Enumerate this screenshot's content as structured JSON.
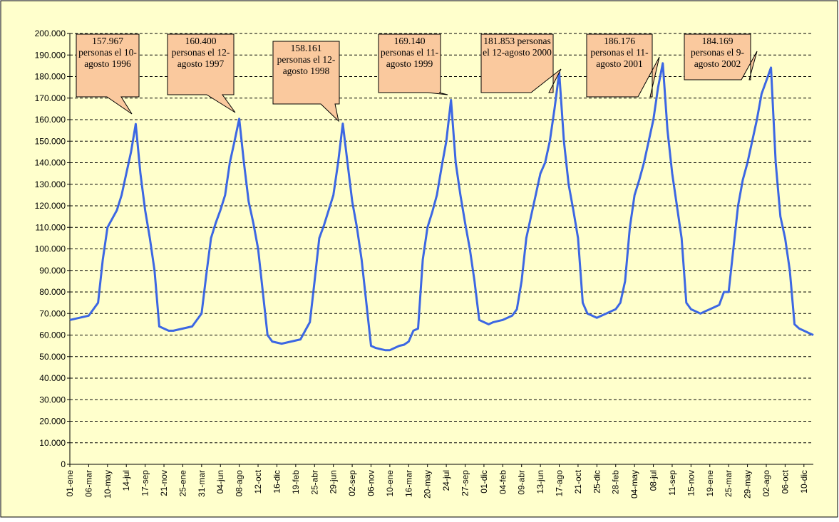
{
  "chart_data": {
    "type": "line",
    "categories": [
      "01-ene",
      null,
      null,
      null,
      "06-mar",
      null,
      null,
      null,
      "10-may",
      null,
      null,
      null,
      "14-jul",
      null,
      null,
      null,
      "17-sep",
      null,
      null,
      null,
      "21-nov",
      null,
      null,
      null,
      "25-ene",
      null,
      null,
      null,
      "31-mar",
      null,
      null,
      null,
      "04-jun",
      null,
      null,
      null,
      "08-ago",
      null,
      null,
      null,
      "12-oct",
      null,
      null,
      null,
      "16-dic",
      null,
      null,
      null,
      "19-feb",
      null,
      null,
      null,
      "25-abr",
      null,
      null,
      null,
      "29-jun",
      null,
      null,
      null,
      "02-sep",
      null,
      null,
      null,
      "06-nov",
      null,
      null,
      null,
      "10-ene",
      null,
      null,
      null,
      "16-mar",
      null,
      null,
      null,
      "20-may",
      null,
      null,
      null,
      "24-jul",
      null,
      null,
      null,
      "27-sep",
      null,
      null,
      null,
      "01-dic",
      null,
      null,
      null,
      "04-feb",
      null,
      null,
      null,
      "09-abr",
      null,
      null,
      null,
      "13-jun",
      null,
      null,
      null,
      "17-ago",
      null,
      null,
      null,
      "21-oct",
      null,
      null,
      null,
      "25-dic",
      null,
      null,
      null,
      "28-feb",
      null,
      null,
      null,
      "04-may",
      null,
      null,
      null,
      "08-jul",
      null,
      null,
      null,
      "11-sep",
      null,
      null,
      null,
      "15-nov",
      null,
      null,
      null,
      "19-ene",
      null,
      null,
      null,
      "25-mar",
      null,
      null,
      null,
      "29-may",
      null,
      null,
      null,
      "02-ago",
      null,
      null,
      null,
      "06-oct",
      null,
      null,
      null,
      "10-dic",
      null,
      null
    ],
    "values": [
      67000,
      67500,
      68000,
      68500,
      69000,
      72000,
      75000,
      95000,
      110000,
      114000,
      118000,
      125000,
      135000,
      145000,
      157967,
      135000,
      118000,
      105000,
      90000,
      64000,
      63000,
      62000,
      62000,
      62500,
      63000,
      63500,
      64000,
      67000,
      70000,
      88000,
      105000,
      112000,
      118000,
      125000,
      140000,
      150000,
      160400,
      140000,
      122000,
      112000,
      100000,
      80000,
      60000,
      57000,
      56500,
      56000,
      56500,
      57000,
      57500,
      58000,
      62000,
      66000,
      85000,
      105000,
      111000,
      118000,
      125000,
      140000,
      158161,
      140000,
      122000,
      110000,
      95000,
      75000,
      55000,
      54000,
      53500,
      53000,
      53000,
      54000,
      55000,
      55500,
      57000,
      62000,
      63000,
      95000,
      110000,
      117000,
      125000,
      138000,
      150000,
      169140,
      140000,
      125000,
      112000,
      100000,
      85000,
      67000,
      66000,
      65000,
      66000,
      66500,
      67000,
      68000,
      69000,
      72000,
      85000,
      105000,
      115000,
      125000,
      135000,
      140000,
      150000,
      165000,
      181853,
      150000,
      130000,
      118000,
      105000,
      75000,
      70000,
      69000,
      68000,
      69000,
      70000,
      71000,
      72000,
      75000,
      85000,
      110000,
      125000,
      132000,
      140000,
      150000,
      160000,
      175000,
      186176,
      155000,
      135000,
      120000,
      105000,
      75000,
      72000,
      71000,
      70000,
      71000,
      72000,
      73000,
      74000,
      80000,
      80000,
      100000,
      120000,
      132000,
      140000,
      150000,
      160000,
      172000,
      178000,
      184169,
      140000,
      115000,
      105000,
      90000,
      65000,
      63000,
      62000,
      61000,
      60000
    ],
    "color": "#3c67e3",
    "ylim": [
      0,
      200000
    ],
    "yticks": [
      0,
      {
        "value": 10000,
        "label": "10.000"
      },
      {
        "value": 20000,
        "label": "20.000"
      },
      {
        "value": 30000,
        "label": "30.000"
      },
      {
        "value": 40000,
        "label": "40.000"
      },
      {
        "value": 50000,
        "label": "50.000"
      },
      {
        "value": 60000,
        "label": "60.000"
      },
      {
        "value": 70000,
        "label": "70.000"
      },
      {
        "value": 80000,
        "label": "80.000"
      },
      {
        "value": 90000,
        "label": "90.000"
      },
      {
        "value": 100000,
        "label": "100.000"
      },
      {
        "value": 110000,
        "label": "110.000"
      },
      {
        "value": 120000,
        "label": "120.000"
      },
      {
        "value": 130000,
        "label": "130.000"
      },
      {
        "value": 140000,
        "label": "140.000"
      },
      {
        "value": 150000,
        "label": "150.000"
      },
      {
        "value": 160000,
        "label": "160.000"
      },
      {
        "value": 170000,
        "label": "170.000"
      },
      {
        "value": 180000,
        "label": "180.000"
      },
      {
        "value": 190000,
        "label": "190.000"
      },
      {
        "value": 200000,
        "label": "200.000"
      }
    ],
    "grid": true,
    "annotations": [
      "157.967 personas el 10-agosto 1996",
      "160.400 personas el 12-agosto 1997",
      "158.161 personas el 12-agosto 1998",
      "169.140 personas el 11-agosto 1999",
      "181.853 personas el 12-agosto 2000",
      "186.176 personas el 11-agosto 2001",
      "184.169 personas el 9-agosto 2002"
    ]
  }
}
